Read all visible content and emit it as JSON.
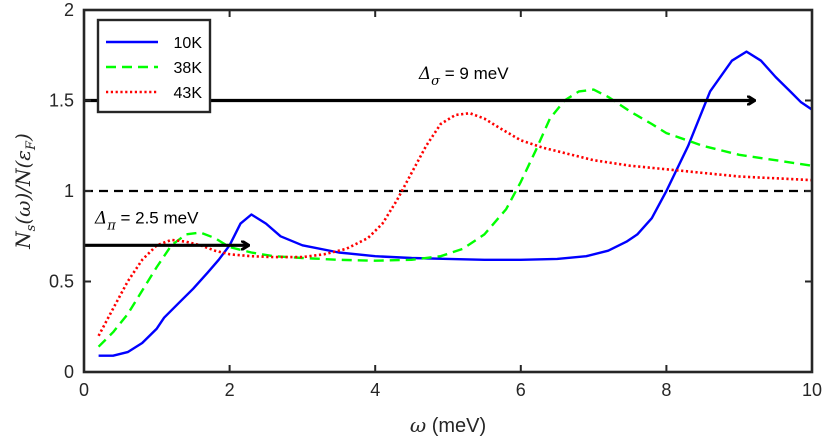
{
  "chart_data": {
    "type": "line",
    "xlabel": "ω (meV)",
    "ylabel": "N_s(ω)/N(ε_F)",
    "xlim": [
      0,
      10
    ],
    "ylim": [
      0,
      2
    ],
    "xticks": [
      0,
      2,
      4,
      6,
      8,
      10
    ],
    "yticks": [
      0,
      0.5,
      1,
      1.5,
      2
    ],
    "ytick_labels": [
      "0",
      "0.5",
      "1",
      "1.5",
      "2"
    ],
    "legend_position": "top-left",
    "series": [
      {
        "name": "10K",
        "style": "solid",
        "color": "#0000ff",
        "x": [
          0.2,
          0.4,
          0.6,
          0.8,
          1.0,
          1.1,
          1.3,
          1.5,
          1.7,
          1.85,
          2.0,
          2.15,
          2.3,
          2.5,
          2.7,
          3.0,
          3.5,
          4.0,
          4.5,
          5.0,
          5.5,
          6.0,
          6.5,
          6.9,
          7.2,
          7.45,
          7.6,
          7.8,
          8.0,
          8.3,
          8.6,
          8.9,
          9.1,
          9.3,
          9.5,
          9.7,
          9.85,
          10.0
        ],
        "y": [
          0.09,
          0.09,
          0.11,
          0.16,
          0.24,
          0.3,
          0.38,
          0.46,
          0.55,
          0.62,
          0.7,
          0.82,
          0.87,
          0.82,
          0.75,
          0.7,
          0.66,
          0.64,
          0.63,
          0.625,
          0.62,
          0.62,
          0.625,
          0.64,
          0.67,
          0.72,
          0.76,
          0.85,
          1.0,
          1.25,
          1.55,
          1.72,
          1.77,
          1.72,
          1.63,
          1.55,
          1.49,
          1.45
        ]
      },
      {
        "name": "38K",
        "style": "dashed",
        "color": "#00ff00",
        "x": [
          0.2,
          0.4,
          0.6,
          0.8,
          1.0,
          1.2,
          1.4,
          1.6,
          1.8,
          2.0,
          2.3,
          2.6,
          3.0,
          3.5,
          4.0,
          4.5,
          4.9,
          5.2,
          5.5,
          5.8,
          6.0,
          6.2,
          6.4,
          6.6,
          6.8,
          7.0,
          7.2,
          7.5,
          7.8,
          8.0,
          8.5,
          9.0,
          9.5,
          10.0
        ],
        "y": [
          0.14,
          0.22,
          0.32,
          0.45,
          0.58,
          0.7,
          0.76,
          0.77,
          0.74,
          0.69,
          0.66,
          0.64,
          0.63,
          0.62,
          0.615,
          0.62,
          0.64,
          0.68,
          0.76,
          0.9,
          1.05,
          1.22,
          1.4,
          1.5,
          1.55,
          1.56,
          1.52,
          1.44,
          1.37,
          1.32,
          1.25,
          1.2,
          1.17,
          1.14
        ]
      },
      {
        "name": "43K",
        "style": "dotted",
        "color": "#ff0000",
        "x": [
          0.2,
          0.4,
          0.6,
          0.8,
          1.0,
          1.2,
          1.4,
          1.6,
          1.8,
          2.0,
          2.3,
          2.6,
          3.0,
          3.3,
          3.6,
          3.9,
          4.1,
          4.3,
          4.5,
          4.7,
          4.9,
          5.1,
          5.3,
          5.5,
          5.7,
          6.0,
          6.3,
          6.6,
          7.0,
          7.5,
          8.0,
          8.5,
          9.0,
          9.5,
          10.0
        ],
        "y": [
          0.2,
          0.35,
          0.5,
          0.62,
          0.7,
          0.73,
          0.72,
          0.7,
          0.67,
          0.65,
          0.64,
          0.635,
          0.635,
          0.65,
          0.68,
          0.74,
          0.82,
          0.95,
          1.1,
          1.25,
          1.37,
          1.42,
          1.43,
          1.4,
          1.35,
          1.28,
          1.24,
          1.21,
          1.17,
          1.14,
          1.12,
          1.1,
          1.08,
          1.07,
          1.06
        ]
      }
    ],
    "reference_lines": [
      {
        "axis": "y",
        "value": 1,
        "style": "dashed",
        "color": "#000000"
      }
    ],
    "annotations": [
      {
        "id": "delta_sigma",
        "symbol": "Δ",
        "subscript": "σ",
        "text": " = 9 meV",
        "arrow_from": [
          0,
          1.5
        ],
        "arrow_to": [
          9.2,
          1.5
        ],
        "text_at": [
          4.6,
          1.62
        ]
      },
      {
        "id": "delta_pi",
        "symbol": "Δ",
        "subscript": "π",
        "text": " = 2.5 meV",
        "arrow_from": [
          0,
          0.7
        ],
        "arrow_to": [
          2.25,
          0.7
        ],
        "text_at": [
          0.15,
          0.82
        ]
      }
    ]
  }
}
